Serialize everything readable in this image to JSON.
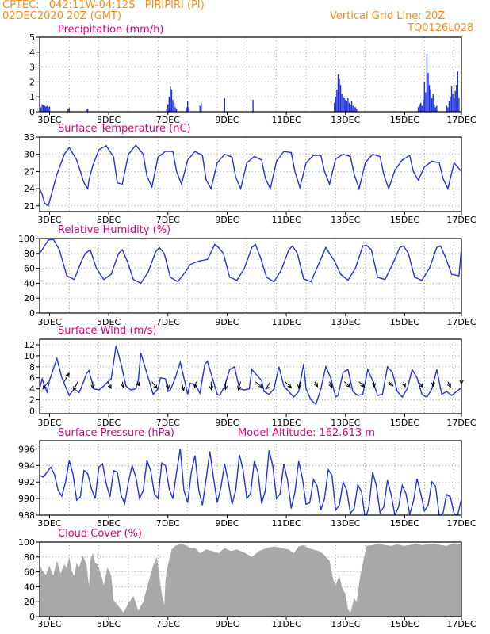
{
  "header": {
    "station_line": "CPTEC:   042:11W-04:12S   PIRIPIRI (PI)",
    "date_line": "02DEC2020 20Z (GMT)",
    "grid_note": "Vertical Grid Line: 20Z",
    "code": "TQ0126L028"
  },
  "colors": {
    "header": "#ff8c1a",
    "title": "#e0007a",
    "series": "#2233dd",
    "cloud": "#a8a8a8",
    "grid": "#999999"
  },
  "x_axis": {
    "start_hour": 20,
    "end_hour": 362,
    "tick_labels": [
      "3DEC",
      "5DEC",
      "7DEC",
      "9DEC",
      "11DEC",
      "13DEC",
      "15DEC",
      "17DEC"
    ],
    "tick_hours": [
      28,
      76,
      124,
      172,
      220,
      268,
      316,
      364
    ]
  },
  "chart_data": [
    {
      "id": "precip",
      "type": "bar",
      "title": "Precipitation (mm/h)",
      "ylim": [
        0,
        5
      ],
      "yticks": [
        0,
        1,
        2,
        3,
        4,
        5
      ],
      "x_hours": [
        21,
        22,
        23,
        24,
        25,
        26,
        27,
        28,
        43,
        44,
        58,
        59,
        123,
        124,
        125,
        126,
        127,
        128,
        129,
        130,
        131,
        139,
        140,
        141,
        150,
        151,
        170,
        193,
        259,
        260,
        261,
        262,
        263,
        264,
        265,
        266,
        267,
        268,
        269,
        270,
        271,
        272,
        273,
        274,
        275,
        276,
        277,
        327,
        328,
        329,
        330,
        331,
        332,
        333,
        334,
        335,
        336,
        337,
        338,
        339,
        340,
        341,
        342,
        350,
        351,
        352,
        353,
        354,
        355,
        356,
        357,
        358,
        359,
        360
      ],
      "values": [
        0.3,
        0.5,
        0.45,
        0.4,
        0.35,
        0.4,
        0.3,
        0.35,
        0.2,
        0.25,
        0.15,
        0.2,
        0.2,
        0.5,
        1.0,
        1.7,
        1.5,
        0.8,
        0.6,
        0.3,
        0.2,
        0.3,
        0.7,
        0.3,
        0.4,
        0.6,
        0.9,
        0.8,
        0.6,
        1.0,
        1.5,
        2.5,
        2.2,
        1.8,
        1.2,
        1.0,
        0.9,
        0.8,
        0.7,
        0.9,
        0.6,
        0.5,
        0.7,
        0.4,
        0.3,
        0.3,
        0.2,
        0.3,
        0.5,
        0.6,
        0.4,
        0.8,
        2.0,
        1.3,
        3.9,
        2.6,
        1.8,
        1.5,
        0.9,
        1.2,
        0.5,
        0.3,
        0.4,
        0.4,
        0.3,
        0.7,
        1.0,
        1.7,
        1.2,
        0.9,
        1.4,
        1.8,
        2.7,
        0.9
      ]
    },
    {
      "id": "temp",
      "type": "line",
      "title": "Surface Temperature (nC)",
      "ylim": [
        20,
        33
      ],
      "yticks": [
        21,
        24,
        27,
        30,
        33
      ],
      "x_hours": [
        20,
        22,
        24,
        27,
        34,
        40,
        44,
        50,
        56,
        59,
        60,
        63,
        68,
        74,
        80,
        83,
        87,
        92,
        98,
        104,
        107,
        111,
        116,
        122,
        128,
        131,
        135,
        140,
        146,
        152,
        155,
        159,
        164,
        170,
        176,
        179,
        183,
        188,
        194,
        200,
        203,
        207,
        212,
        218,
        224,
        227,
        231,
        236,
        242,
        248,
        251,
        255,
        260,
        266,
        272,
        275,
        279,
        284,
        290,
        296,
        299,
        303,
        308,
        314,
        320,
        323,
        327,
        332,
        338,
        344,
        347,
        351,
        356,
        362
      ],
      "values": [
        24.0,
        23.0,
        21.5,
        21.0,
        26.5,
        30.0,
        31.2,
        29.0,
        25.0,
        24.0,
        25.5,
        28.0,
        30.8,
        31.5,
        29.5,
        25.0,
        24.8,
        30.0,
        31.6,
        30.0,
        26.2,
        24.3,
        29.5,
        30.5,
        30.5,
        27.0,
        24.8,
        29.0,
        30.5,
        29.8,
        25.5,
        24.0,
        28.5,
        30.0,
        29.5,
        26.0,
        24.0,
        28.5,
        29.6,
        29.0,
        25.8,
        24.0,
        28.8,
        30.5,
        30.3,
        27.0,
        24.2,
        28.5,
        29.8,
        29.8,
        27.0,
        24.8,
        29.2,
        30.0,
        29.6,
        26.5,
        24.0,
        28.5,
        30.0,
        29.6,
        26.5,
        24.0,
        27.2,
        29.0,
        29.8,
        27.0,
        25.5,
        27.8,
        28.8,
        28.5,
        25.8,
        24.0,
        28.5,
        27.0
      ]
    },
    {
      "id": "rh",
      "type": "line",
      "title": "Relative Humidity (%)",
      "ylim": [
        0,
        100
      ],
      "yticks": [
        0,
        20,
        40,
        60,
        80,
        100
      ],
      "x_hours": [
        20,
        22,
        24,
        27,
        31,
        36,
        42,
        48,
        54,
        57,
        61,
        66,
        72,
        78,
        84,
        87,
        91,
        96,
        102,
        108,
        114,
        117,
        121,
        126,
        132,
        138,
        142,
        146,
        150,
        156,
        162,
        165,
        169,
        174,
        180,
        186,
        192,
        195,
        199,
        204,
        210,
        216,
        222,
        225,
        229,
        234,
        240,
        246,
        252,
        255,
        259,
        264,
        270,
        276,
        282,
        285,
        289,
        294,
        300,
        306,
        312,
        315,
        319,
        324,
        330,
        336,
        342,
        345,
        349,
        354,
        360,
        362
      ],
      "values": [
        80,
        85,
        90,
        98,
        99,
        85,
        50,
        45,
        70,
        80,
        85,
        60,
        45,
        52,
        80,
        85,
        70,
        45,
        40,
        55,
        82,
        88,
        80,
        48,
        42,
        55,
        65,
        68,
        70,
        72,
        92,
        88,
        80,
        48,
        44,
        60,
        88,
        92,
        75,
        48,
        42,
        58,
        85,
        90,
        80,
        46,
        42,
        65,
        88,
        80,
        70,
        52,
        44,
        60,
        90,
        91,
        85,
        48,
        45,
        65,
        88,
        90,
        80,
        48,
        44,
        60,
        88,
        90,
        75,
        52,
        50,
        88
      ]
    },
    {
      "id": "wind",
      "type": "line",
      "title": "Surface Wind (m/s)",
      "ylim": [
        -0.5,
        13
      ],
      "yticks": [
        0,
        2,
        4,
        6,
        8,
        10,
        12
      ],
      "x_hours": [
        20,
        22,
        24,
        26,
        28,
        32,
        34,
        38,
        44,
        48,
        52,
        56,
        58,
        60,
        64,
        68,
        72,
        75,
        78,
        82,
        86,
        90,
        94,
        98,
        100,
        102,
        104,
        108,
        112,
        116,
        118,
        122,
        124,
        126,
        130,
        134,
        138,
        140,
        142,
        146,
        150,
        154,
        156,
        160,
        164,
        166,
        170,
        174,
        178,
        182,
        186,
        190,
        192,
        196,
        200,
        202,
        206,
        210,
        214,
        218,
        222,
        226,
        230,
        234,
        236,
        240,
        244,
        248,
        252,
        256,
        260,
        262,
        266,
        270,
        274,
        278,
        282,
        286,
        290,
        294,
        298,
        302,
        306,
        310,
        314,
        318,
        322,
        326,
        330,
        334,
        338,
        342,
        346,
        350,
        354,
        358,
        362
      ],
      "values": [
        4.0,
        5.8,
        4.5,
        3.4,
        5.5,
        8.2,
        9.5,
        6.0,
        2.8,
        4.0,
        3.3,
        5.5,
        6.8,
        7.3,
        4.0,
        3.8,
        4.5,
        5.2,
        5.8,
        11.8,
        8.5,
        4.5,
        3.8,
        4.0,
        5.5,
        10.5,
        9.0,
        6.0,
        3.0,
        4.0,
        6.0,
        5.8,
        3.5,
        3.8,
        6.0,
        8.8,
        5.0,
        3.0,
        5.0,
        4.8,
        3.2,
        8.5,
        9.0,
        6.0,
        3.0,
        2.8,
        4.5,
        7.5,
        8.0,
        4.0,
        3.8,
        4.0,
        7.5,
        6.5,
        5.5,
        3.5,
        3.0,
        4.0,
        8.0,
        4.5,
        3.5,
        2.5,
        3.5,
        8.5,
        4.0,
        2.0,
        1.2,
        4.0,
        8.0,
        6.0,
        2.5,
        2.8,
        7.0,
        7.5,
        3.5,
        2.8,
        3.0,
        7.5,
        5.5,
        2.8,
        3.0,
        8.0,
        7.0,
        3.5,
        2.5,
        4.0,
        7.5,
        6.0,
        3.0,
        2.5,
        4.0,
        7.5,
        3.0,
        3.5,
        2.8,
        3.5,
        4.2
      ]
    },
    {
      "id": "pressure",
      "type": "line",
      "title": "Surface Pressure (hPa)",
      "subtitle": "Model Altitude: 162.613 m",
      "ylim": [
        988,
        997
      ],
      "yticks": [
        988,
        990,
        992,
        994,
        996
      ],
      "x_hours": [
        20,
        23,
        26,
        29,
        32,
        35,
        38,
        41,
        44,
        47,
        50,
        53,
        56,
        59,
        62,
        65,
        68,
        71,
        74,
        77,
        80,
        83,
        86,
        89,
        92,
        95,
        98,
        101,
        104,
        107,
        110,
        113,
        116,
        119,
        122,
        125,
        128,
        131,
        134,
        137,
        140,
        143,
        146,
        149,
        152,
        155,
        158,
        161,
        164,
        167,
        170,
        173,
        176,
        179,
        182,
        185,
        188,
        191,
        194,
        197,
        200,
        203,
        206,
        209,
        212,
        215,
        218,
        221,
        224,
        227,
        230,
        233,
        236,
        239,
        242,
        245,
        248,
        251,
        254,
        257,
        260,
        263,
        266,
        269,
        272,
        275,
        278,
        281,
        284,
        287,
        290,
        293,
        296,
        299,
        302,
        305,
        308,
        311,
        314,
        317,
        320,
        323,
        326,
        329,
        332,
        335,
        338,
        341,
        344,
        347,
        350,
        353,
        356,
        359,
        362
      ],
      "values": [
        992.8,
        992.6,
        993.2,
        993.8,
        992.9,
        991.0,
        990.3,
        992.0,
        994.6,
        993.0,
        989.8,
        990.2,
        993.4,
        993.0,
        991.2,
        990.0,
        993.8,
        994.2,
        991.8,
        990.2,
        993.4,
        993.2,
        990.4,
        989.4,
        992.0,
        994.0,
        992.6,
        990.0,
        991.0,
        994.6,
        993.4,
        990.6,
        990.0,
        994.3,
        994.0,
        991.2,
        990.0,
        993.2,
        996.0,
        991.0,
        989.5,
        993.2,
        995.2,
        991.0,
        989.2,
        992.4,
        995.7,
        992.5,
        989.5,
        991.4,
        994.2,
        992.0,
        989.3,
        991.0,
        995.3,
        993.4,
        990.0,
        990.6,
        994.5,
        993.2,
        989.4,
        991.0,
        995.8,
        994.0,
        990.0,
        990.6,
        994.2,
        992.2,
        988.8,
        990.8,
        994.5,
        992.5,
        989.3,
        989.5,
        992.3,
        991.5,
        988.6,
        990.0,
        993.5,
        992.8,
        988.6,
        989.2,
        992.0,
        991.0,
        988.2,
        988.8,
        991.7,
        990.8,
        987.5,
        989.0,
        993.2,
        991.5,
        988.3,
        989.0,
        992.2,
        990.5,
        988.0,
        989.0,
        991.6,
        990.6,
        988.1,
        989.6,
        992.4,
        990.6,
        988.5,
        989.2,
        992.0,
        991.5,
        988.0,
        988.2,
        990.5,
        990.2,
        988.2,
        988.0,
        990.0
      ]
    },
    {
      "id": "cloud",
      "type": "area",
      "title": "Cloud Cover (%)",
      "ylim": [
        0,
        100
      ],
      "yticks": [
        0,
        20,
        40,
        60,
        80,
        100
      ],
      "x_hours": [
        20,
        22,
        25,
        28,
        31,
        34,
        37,
        40,
        42,
        44,
        46,
        48,
        50,
        52,
        55,
        58,
        60,
        61,
        63,
        65,
        67,
        70,
        72,
        75,
        78,
        80,
        85,
        88,
        92,
        96,
        100,
        104,
        108,
        112,
        115,
        117,
        119,
        121,
        122,
        123,
        125,
        127,
        130,
        134,
        138,
        142,
        146,
        150,
        155,
        160,
        165,
        170,
        175,
        180,
        186,
        192,
        198,
        204,
        210,
        216,
        222,
        226,
        230,
        234,
        238,
        242,
        246,
        250,
        255,
        258,
        260,
        263,
        265,
        268,
        270,
        272,
        275,
        277,
        280,
        285,
        290,
        295,
        300,
        305,
        310,
        315,
        320,
        325,
        330,
        335,
        340,
        345,
        350,
        355,
        362
      ],
      "values": [
        70,
        62,
        56,
        68,
        55,
        75,
        58,
        70,
        65,
        80,
        62,
        54,
        72,
        66,
        82,
        70,
        40,
        75,
        85,
        72,
        70,
        55,
        42,
        66,
        55,
        22,
        12,
        5,
        18,
        28,
        8,
        20,
        45,
        68,
        80,
        55,
        30,
        15,
        48,
        62,
        76,
        90,
        95,
        98,
        96,
        92,
        92,
        85,
        90,
        88,
        85,
        92,
        88,
        90,
        86,
        80,
        88,
        92,
        94,
        92,
        90,
        85,
        94,
        96,
        92,
        90,
        88,
        84,
        75,
        50,
        42,
        55,
        40,
        30,
        10,
        5,
        25,
        20,
        55,
        95,
        96,
        98,
        96,
        95,
        97,
        95,
        96,
        98,
        96,
        97,
        98,
        96,
        95,
        98,
        98
      ]
    }
  ],
  "wind_arrows": [
    {
      "hour": 27,
      "speed": 5.3,
      "dir_deg": 248
    },
    {
      "hour": 40,
      "speed": 6.0,
      "dir_deg": 73
    },
    {
      "hour": 51,
      "speed": 5.9,
      "dir_deg": 254
    },
    {
      "hour": 63,
      "speed": 4.5,
      "dir_deg": 271
    },
    {
      "hour": 75,
      "speed": 4.7,
      "dir_deg": 287
    },
    {
      "hour": 87,
      "speed": 3.9,
      "dir_deg": 277
    },
    {
      "hour": 99,
      "speed": 2.9,
      "dir_deg": 288
    },
    {
      "hour": 111,
      "speed": 4.9,
      "dir_deg": 293
    },
    {
      "hour": 123,
      "speed": 4.9,
      "dir_deg": 278
    },
    {
      "hour": 135,
      "speed": 6.0,
      "dir_deg": 278
    },
    {
      "hour": 147,
      "speed": 4.0,
      "dir_deg": 261
    },
    {
      "hour": 159,
      "speed": 5.5,
      "dir_deg": 271
    },
    {
      "hour": 171,
      "speed": 5.3,
      "dir_deg": 268
    },
    {
      "hour": 183,
      "speed": 5.6,
      "dir_deg": 261
    },
    {
      "hour": 195,
      "speed": 4.6,
      "dir_deg": 304
    },
    {
      "hour": 207,
      "speed": 5.3,
      "dir_deg": 252
    },
    {
      "hour": 219,
      "speed": 4.6,
      "dir_deg": 300
    },
    {
      "hour": 231,
      "speed": 4.5,
      "dir_deg": 265
    },
    {
      "hour": 243,
      "speed": 3.5,
      "dir_deg": 287
    },
    {
      "hour": 255,
      "speed": 4.0,
      "dir_deg": 282
    },
    {
      "hour": 267,
      "speed": 4.2,
      "dir_deg": 302
    },
    {
      "hour": 279,
      "speed": 4.0,
      "dir_deg": 298
    },
    {
      "hour": 291,
      "speed": 3.5,
      "dir_deg": 272
    },
    {
      "hour": 303,
      "speed": 3.2,
      "dir_deg": 300
    },
    {
      "hour": 315,
      "speed": 3.5,
      "dir_deg": 280
    },
    {
      "hour": 327,
      "speed": 4.0,
      "dir_deg": 295
    },
    {
      "hour": 339,
      "speed": 3.1,
      "dir_deg": 271
    },
    {
      "hour": 351,
      "speed": 3.8,
      "dir_deg": 285
    },
    {
      "hour": 362,
      "speed": 1.5,
      "dir_deg": 270
    }
  ]
}
